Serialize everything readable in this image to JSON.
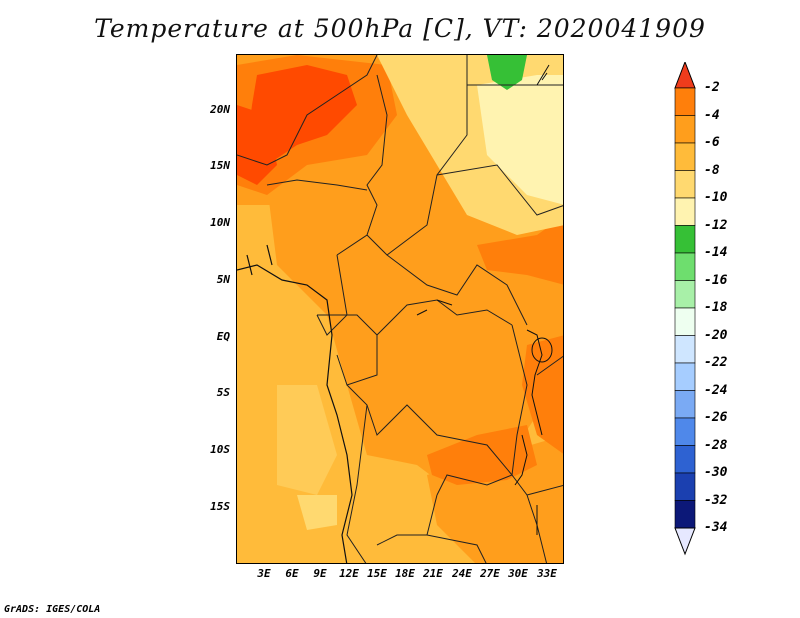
{
  "title": "Temperature at 500hPa [C], VT: 2020041909",
  "credit": "GrADS: IGES/COLA",
  "lat_ticks": [
    "20N",
    "15N",
    "10N",
    "5N",
    "EQ",
    "5S",
    "10S",
    "15S"
  ],
  "lon_ticks": [
    "3E",
    "6E",
    "9E",
    "12E",
    "15E",
    "18E",
    "21E",
    "24E",
    "27E",
    "30E",
    "33E"
  ],
  "colorbar": {
    "labels": [
      "-2",
      "-4",
      "-6",
      "-8",
      "-10",
      "-12",
      "-14",
      "-16",
      "-18",
      "-20",
      "-22",
      "-24",
      "-26",
      "-28",
      "-30",
      "-32",
      "-34"
    ],
    "colors": [
      "#ff4a00",
      "#ff7f0b",
      "#ff9e1c",
      "#ffbb3a",
      "#ffd970",
      "#fff3b0",
      "#36c036",
      "#6ede6e",
      "#a8f0a8",
      "#eefff0",
      "#cfe6ff",
      "#a6cdff",
      "#7aaaf4",
      "#4f88ea",
      "#2e62d2",
      "#1b40b0",
      "#0c1878"
    ],
    "top_arrow_color": "#ef3c1c",
    "bottom_arrow_color": "#e6e8ff"
  },
  "map": {
    "background_color": "#ffbb3a",
    "accent_colors": {
      "warm": "#ff9e1c",
      "hot": "#ff7f0b",
      "hottest": "#ff4a00",
      "cool": "#ffd970",
      "cooler": "#fff3b0",
      "green": "#36c036"
    }
  }
}
